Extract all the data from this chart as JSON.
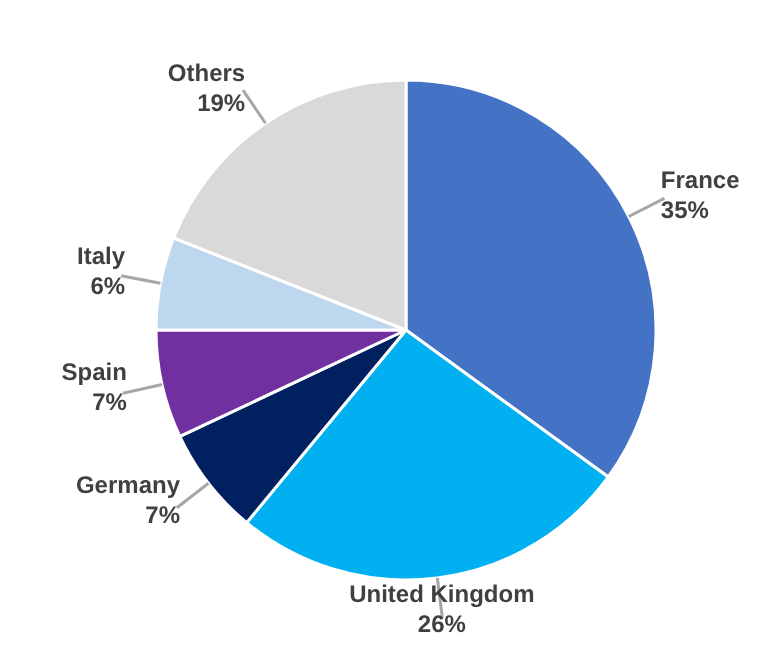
{
  "chart_data": {
    "type": "pie",
    "categories": [
      "France",
      "United Kingdom",
      "Germany",
      "Spain",
      "Italy",
      "Others"
    ],
    "values": [
      35,
      26,
      7,
      7,
      6,
      19
    ],
    "value_labels": [
      "35%",
      "26%",
      "7%",
      "7%",
      "6%",
      "19%"
    ],
    "colors": [
      "#4472c4",
      "#00b0f0",
      "#002060",
      "#7030a0",
      "#bdd7ee",
      "#d9d9d9"
    ]
  }
}
